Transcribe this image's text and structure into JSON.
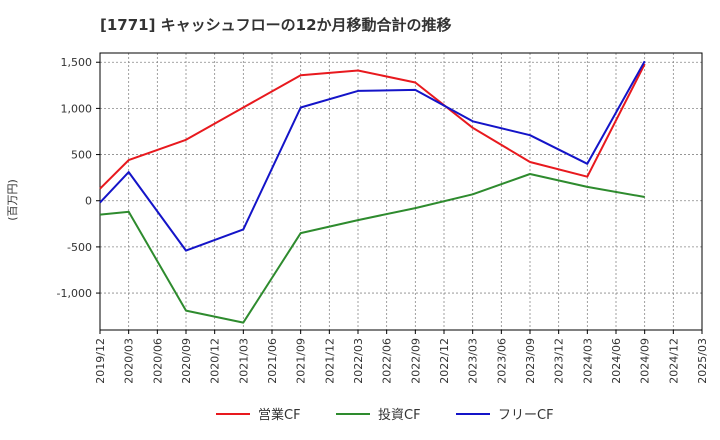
{
  "chart_data": {
    "type": "line",
    "title": "[1771]  キャッシュフローの12か月移動合計の推移",
    "ylabel": "(百万円)",
    "xlabel": "",
    "ylim": [
      -1400,
      1600
    ],
    "yticks": [
      -1000,
      -500,
      0,
      500,
      1000,
      1500
    ],
    "ytick_labels": [
      "-1,000",
      "-500",
      "0",
      "500",
      "1,000",
      "1,500"
    ],
    "categories": [
      "2019/12",
      "2020/03",
      "2020/06",
      "2020/09",
      "2020/12",
      "2021/03",
      "2021/06",
      "2021/09",
      "2021/12",
      "2022/03",
      "2022/06",
      "2022/09",
      "2022/12",
      "2023/03",
      "2023/06",
      "2023/09",
      "2023/12",
      "2024/03",
      "2024/06",
      "2024/09",
      "2024/12",
      "2025/03"
    ],
    "grid": true,
    "legend_position": "bottom",
    "series": [
      {
        "name": "営業CF",
        "color": "#e8191e",
        "values": [
          130,
          440,
          null,
          660,
          null,
          1010,
          null,
          1360,
          null,
          1410,
          null,
          1280,
          null,
          790,
          null,
          420,
          null,
          260,
          null,
          1480,
          null,
          null
        ]
      },
      {
        "name": "投資CF",
        "color": "#2e8b2e",
        "values": [
          -150,
          -120,
          null,
          -1190,
          null,
          -1320,
          null,
          -350,
          null,
          -210,
          null,
          -80,
          null,
          70,
          null,
          290,
          null,
          150,
          null,
          40,
          null,
          null
        ]
      },
      {
        "name": "フリーCF",
        "color": "#1414c8",
        "values": [
          -20,
          310,
          null,
          -540,
          null,
          -310,
          null,
          1010,
          null,
          1190,
          null,
          1200,
          null,
          860,
          null,
          710,
          null,
          400,
          null,
          1510,
          null,
          null
        ]
      }
    ]
  }
}
